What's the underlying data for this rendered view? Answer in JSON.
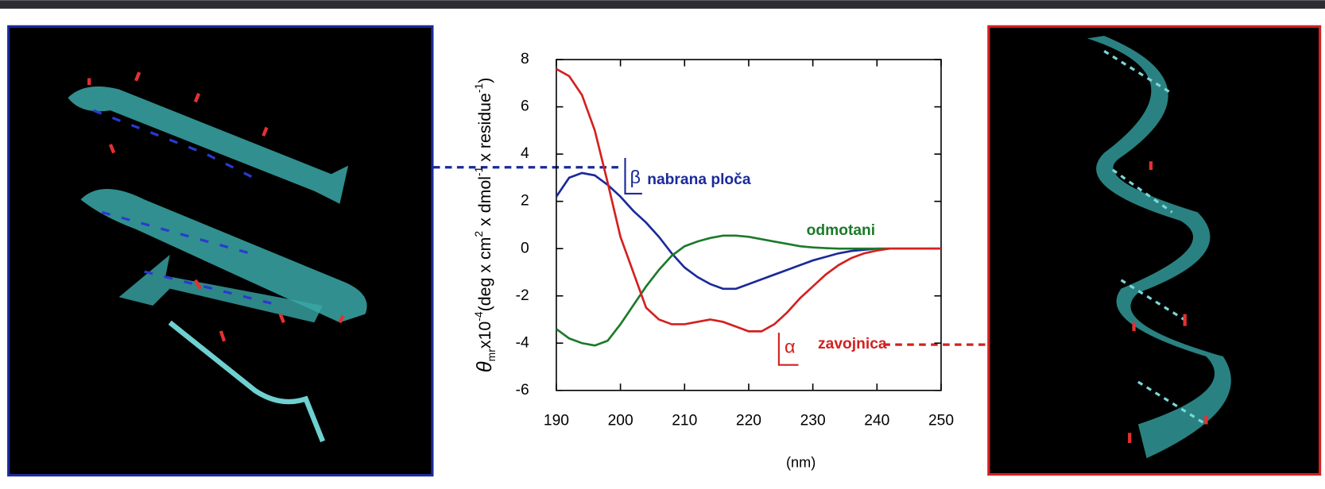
{
  "chart_data": {
    "type": "line",
    "xlabel": "(nm)",
    "ylabel": [
      "θ",
      "mr",
      "x10",
      "-4",
      "(deg x cm",
      "2",
      " x dmol",
      "-1",
      " x residue",
      "-1",
      ")"
    ],
    "x": [
      190,
      192,
      194,
      196,
      198,
      200,
      202,
      204,
      206,
      208,
      210,
      212,
      214,
      216,
      218,
      220,
      222,
      224,
      226,
      228,
      230,
      232,
      234,
      236,
      238,
      240,
      242,
      244,
      246,
      248,
      250
    ],
    "series": [
      {
        "name": "nabrana ploča",
        "symbol": "β",
        "color": "#1a2a9a",
        "values": [
          2.2,
          3.0,
          3.2,
          3.1,
          2.7,
          2.2,
          1.6,
          1.1,
          0.5,
          -0.2,
          -0.8,
          -1.2,
          -1.5,
          -1.7,
          -1.7,
          -1.5,
          -1.3,
          -1.1,
          -0.9,
          -0.7,
          -0.5,
          -0.35,
          -0.2,
          -0.1,
          -0.05,
          0,
          0,
          0,
          0,
          0,
          0
        ]
      },
      {
        "name": "odmotani",
        "color": "#1c7a2a",
        "values": [
          -3.4,
          -3.8,
          -4.0,
          -4.1,
          -3.9,
          -3.2,
          -2.4,
          -1.6,
          -0.9,
          -0.3,
          0.1,
          0.3,
          0.45,
          0.55,
          0.55,
          0.5,
          0.4,
          0.3,
          0.2,
          0.1,
          0.05,
          0.02,
          0,
          0,
          0,
          0,
          0,
          0,
          0,
          0,
          0
        ]
      },
      {
        "name": "zavojnica",
        "symbol": "α",
        "color": "#d42020",
        "values": [
          7.6,
          7.3,
          6.5,
          5.0,
          2.8,
          0.5,
          -1.0,
          -2.5,
          -3.0,
          -3.2,
          -3.2,
          -3.1,
          -3.0,
          -3.1,
          -3.3,
          -3.5,
          -3.5,
          -3.2,
          -2.7,
          -2.1,
          -1.6,
          -1.1,
          -0.7,
          -0.4,
          -0.2,
          -0.08,
          0,
          0,
          0,
          0,
          0
        ]
      }
    ],
    "xlim": [
      190,
      250
    ],
    "xticks": [
      190,
      200,
      210,
      220,
      230,
      240,
      250
    ],
    "ylim": [
      -6,
      8
    ],
    "yticks": [
      -6,
      -4,
      -2,
      0,
      2,
      4,
      6,
      8
    ]
  }
}
